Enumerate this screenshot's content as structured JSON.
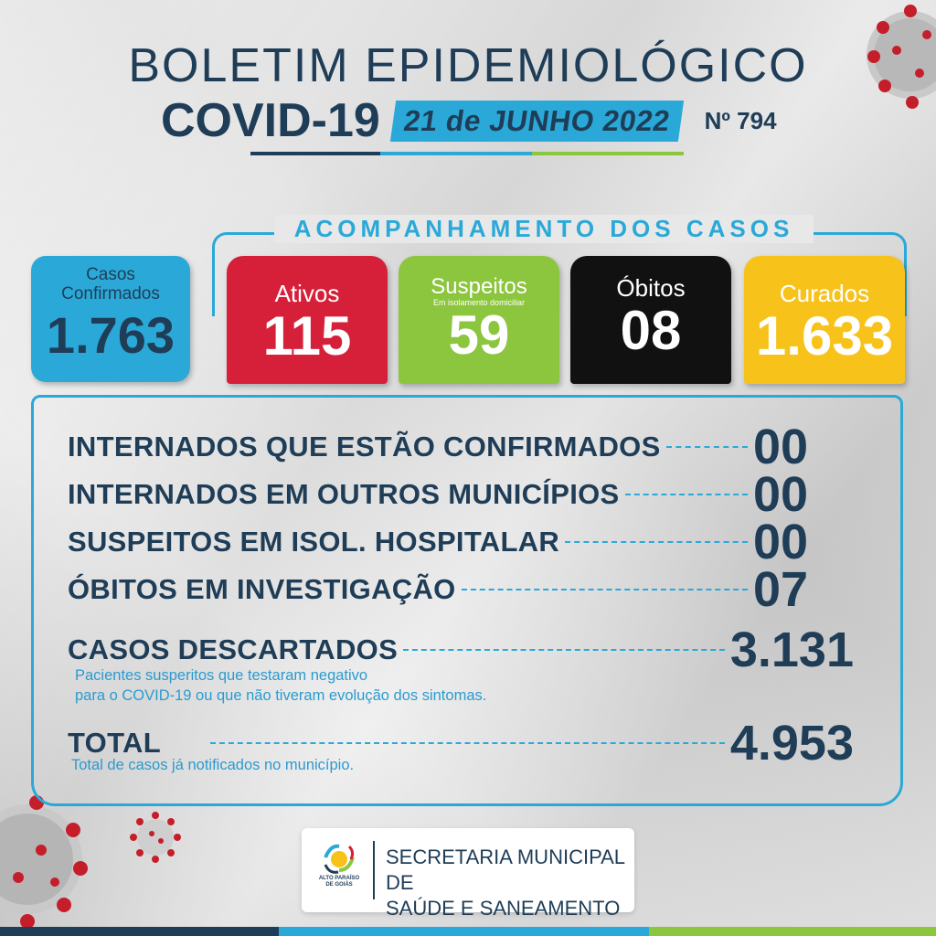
{
  "header": {
    "title": "BOLETIM EPIDEMIOLÓGICO",
    "covid": "COVID-19",
    "date": "21 de JUNHO 2022",
    "number": "Nº 794"
  },
  "tracking": {
    "title": "ACOMPANHAMENTO DOS CASOS",
    "confirmed": {
      "label_line1": "Casos",
      "label_line2": "Confirmados",
      "value": "1.763"
    },
    "active": {
      "label": "Ativos",
      "value": "115"
    },
    "suspected": {
      "label": "Suspeitos",
      "sublabel": "Em isolamento domiciliar",
      "value": "59"
    },
    "deaths": {
      "label": "Óbitos",
      "value": "08"
    },
    "recovered": {
      "label": "Curados",
      "value": "1.633"
    }
  },
  "details": {
    "rows": [
      {
        "label": "INTERNADOS QUE ESTÃO CONFIRMADOS",
        "value": "00"
      },
      {
        "label": "INTERNADOS EM OUTROS MUNICÍPIOS",
        "value": "00"
      },
      {
        "label": "SUSPEITOS EM ISOL. HOSPITALAR",
        "value": "00"
      },
      {
        "label": "ÓBITOS EM INVESTIGAÇÃO",
        "value": "07"
      },
      {
        "label": "CASOS DESCARTADOS",
        "value": "3.131"
      },
      {
        "label": "TOTAL",
        "value": "4.953"
      }
    ],
    "discarded_note_line1": "Pacientes susperitos que testaram negativo",
    "discarded_note_line2": "para o COVID-19 ou que não tiveram evolução dos sintomas.",
    "total_note": "Total de casos já notificados no município."
  },
  "footer": {
    "line1": "SECRETARIA MUNICIPAL DE",
    "line2": "SAÚDE E SANEAMENTO",
    "logo_line1": "ALTO PARAÍSO",
    "logo_line2": "DE GOIÁS"
  },
  "colors": {
    "navy": "#1f3d57",
    "cyan": "#2aa9d8",
    "red": "#d6203a",
    "green": "#8cc63f",
    "black": "#111111",
    "yellow": "#f7c21a"
  }
}
